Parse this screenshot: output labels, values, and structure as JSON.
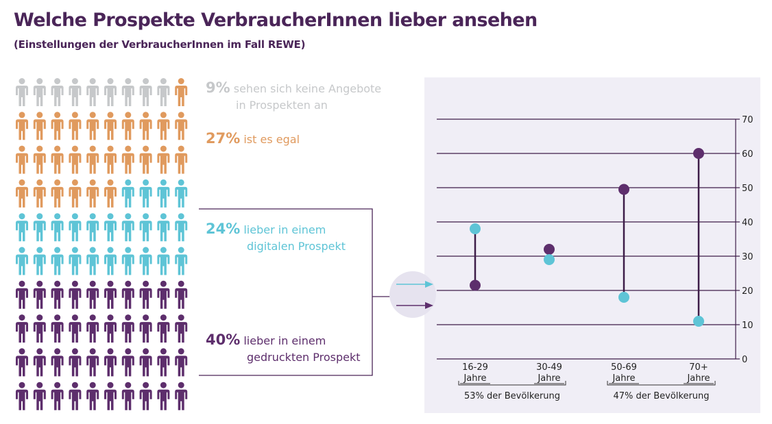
{
  "header": {
    "title": "Welche Prospekte VerbraucherInnen lieber ansehen",
    "subtitle": "(Einstellungen der VerbraucherInnen im Fall REWE)"
  },
  "colors": {
    "title": "#4a2558",
    "none": "#c6c8ca",
    "egal": "#e09a5e",
    "digital": "#5ec4d6",
    "print": "#5d2e6c",
    "grid": "#3d1c48",
    "panel": "#f0eef6"
  },
  "icon_grid": {
    "rows": [
      [
        "none",
        "none",
        "none",
        "none",
        "none",
        "none",
        "none",
        "none",
        "none",
        "egal"
      ],
      [
        "egal",
        "egal",
        "egal",
        "egal",
        "egal",
        "egal",
        "egal",
        "egal",
        "egal",
        "egal"
      ],
      [
        "egal",
        "egal",
        "egal",
        "egal",
        "egal",
        "egal",
        "egal",
        "egal",
        "egal",
        "egal"
      ],
      [
        "egal",
        "egal",
        "egal",
        "egal",
        "egal",
        "egal",
        "digital",
        "digital",
        "digital",
        "digital"
      ],
      [
        "digital",
        "digital",
        "digital",
        "digital",
        "digital",
        "digital",
        "digital",
        "digital",
        "digital",
        "digital"
      ],
      [
        "digital",
        "digital",
        "digital",
        "digital",
        "digital",
        "digital",
        "digital",
        "digital",
        "digital",
        "digital"
      ],
      [
        "print",
        "print",
        "print",
        "print",
        "print",
        "print",
        "print",
        "print",
        "print",
        "print"
      ],
      [
        "print",
        "print",
        "print",
        "print",
        "print",
        "print",
        "print",
        "print",
        "print",
        "print"
      ],
      [
        "print",
        "print",
        "print",
        "print",
        "print",
        "print",
        "print",
        "print",
        "print",
        "print"
      ],
      [
        "print",
        "print",
        "print",
        "print",
        "print",
        "print",
        "print",
        "print",
        "print",
        "print"
      ]
    ],
    "icon": "person-icon"
  },
  "legend": {
    "none": {
      "pct": "9%",
      "line1": "sehen sich keine Angebote",
      "line2": "in Prospekten an"
    },
    "egal": {
      "pct": "27%",
      "line1": "ist es egal"
    },
    "digital": {
      "pct": "24%",
      "line1": "lieber in einem",
      "line2": "digitalen Prospekt"
    },
    "print": {
      "pct": "40%",
      "line1": "lieber in einem",
      "line2": "gedruckten Prospekt"
    }
  },
  "chart_data": {
    "type": "dumbbell",
    "categories": [
      "16-29 Jahre",
      "30-49 Jahre",
      "50-69 Jahre",
      "70+ Jahre"
    ],
    "category_lines": [
      [
        "16-29",
        "Jahre"
      ],
      [
        "30-49",
        "Jahre"
      ],
      [
        "50-69",
        "Jahre"
      ],
      [
        "70+",
        "Jahre"
      ]
    ],
    "series": [
      {
        "color": "#5ec4d6",
        "values": [
          38,
          29,
          18,
          11
        ]
      },
      {
        "color": "#5d2e6c",
        "values": [
          21.5,
          32,
          49.5,
          60
        ]
      }
    ],
    "ylim": [
      0,
      70
    ],
    "yticks": [
      "0",
      "10",
      "20",
      "30",
      "40",
      "50",
      "60",
      "70"
    ],
    "y_axis_side": "right",
    "grid": true,
    "groups": [
      {
        "label": "53% der Bevölkerung",
        "categories": [
          "16-29 Jahre",
          "30-49 Jahre"
        ]
      },
      {
        "label": "47% der Bevölkerung",
        "categories": [
          "50-69 Jahre",
          "70+ Jahre"
        ]
      }
    ]
  }
}
